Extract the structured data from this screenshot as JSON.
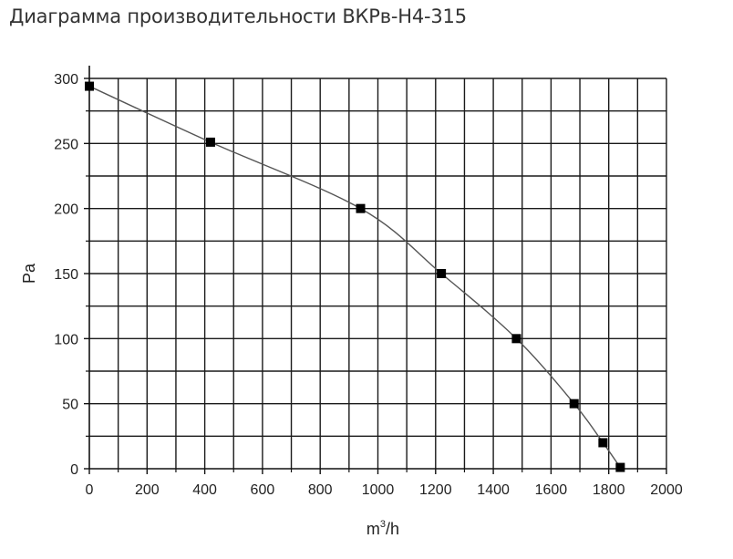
{
  "chart_data": {
    "type": "line",
    "title": "Диаграмма производительности ВКРв-Н4-315",
    "xlabel": "m³/h",
    "xlabel_base": "m",
    "xlabel_sup": "3",
    "xlabel_rest": "/h",
    "ylabel": "Pa",
    "xlim": [
      0,
      2000
    ],
    "ylim": [
      0,
      300
    ],
    "x_ticks": [
      "0",
      "200",
      "400",
      "600",
      "800",
      "1000",
      "1200",
      "1400",
      "1600",
      "1800",
      "2000"
    ],
    "y_ticks": [
      "0",
      "50",
      "100",
      "150",
      "200",
      "250",
      "300"
    ],
    "grid": true,
    "series": [
      {
        "x": [
          0,
          420,
          940,
          1220,
          1480,
          1680,
          1780,
          1840
        ],
        "y": [
          294,
          251,
          200,
          150,
          100,
          50,
          20,
          1
        ],
        "line_color": "#555555",
        "marker_color": "#000000",
        "marker": "square"
      }
    ]
  }
}
